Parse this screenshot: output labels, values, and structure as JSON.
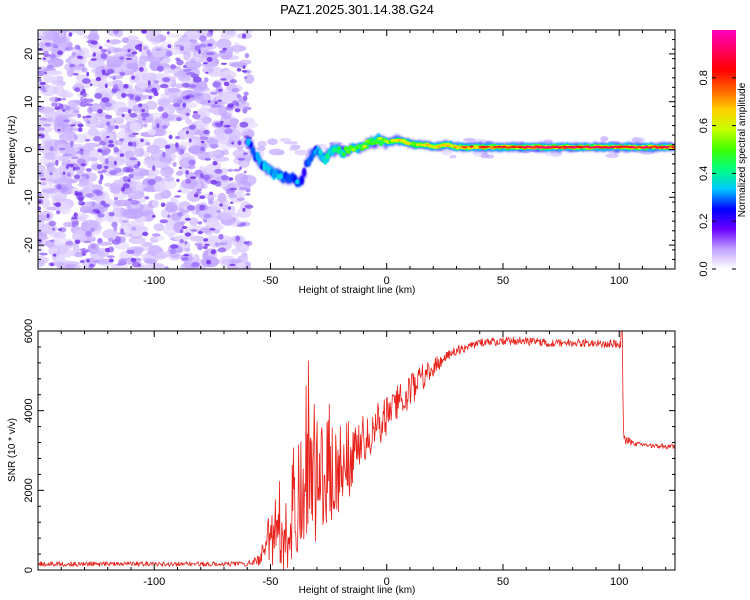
{
  "title": "PAZ1.2025.301.14.38.G24",
  "colors": {
    "snr_line": "#e8201a",
    "spec_ridge": "#ff2a2a",
    "spec_mid": "#22dd44",
    "spec_low": "#00bcd4",
    "spec_base": "#3a10ff",
    "noise": "#7a3cf0"
  },
  "chart_data": [
    {
      "type": "heatmap",
      "title": "PAZ1.2025.301.14.38.G24",
      "xlabel": "Height of straight line (km)",
      "ylabel": "Frequency (Hz)",
      "xlim": [
        -150,
        124
      ],
      "ylim": [
        -25,
        25
      ],
      "xticks": [
        -100,
        -50,
        0,
        50,
        100
      ],
      "xtick_labels": [
        "-100",
        "-50",
        "0",
        "50",
        "100"
      ],
      "yticks": [
        -20,
        -10,
        0,
        10,
        20
      ],
      "ytick_labels": [
        "-20",
        "-10",
        "0",
        "10",
        "20"
      ],
      "noise_region": {
        "x_from": -150,
        "x_to": -59,
        "description_level": 0.15
      },
      "ridge": {
        "x": [
          -60,
          -57,
          -54,
          -51,
          -48,
          -45,
          -42,
          -39,
          -37,
          -35,
          -33,
          -31,
          -29,
          -27,
          -25,
          -22,
          -19,
          -16,
          -13,
          -10,
          -7,
          -4,
          0,
          4,
          8,
          12,
          16,
          20,
          25,
          30,
          40,
          50,
          60,
          70,
          80,
          90,
          100,
          110,
          120,
          124
        ],
        "y": [
          2,
          -1,
          -3,
          -4.5,
          -5,
          -5.5,
          -6,
          -7,
          -6.5,
          -3,
          -1.5,
          0,
          -1,
          -2,
          -0.5,
          0,
          -0.5,
          0,
          0,
          1,
          1.5,
          2,
          1.5,
          2,
          1.5,
          1,
          1,
          0.5,
          1,
          0.5,
          0.5,
          0.5,
          0.5,
          0.5,
          0.5,
          0.5,
          0.5,
          0.5,
          0.5,
          0.5
        ],
        "amplitude": [
          0.3,
          0.3,
          0.3,
          0.35,
          0.35,
          0.3,
          0.3,
          0.3,
          0.25,
          0.25,
          0.3,
          0.3,
          0.35,
          0.35,
          0.4,
          0.4,
          0.45,
          0.5,
          0.5,
          0.55,
          0.5,
          0.5,
          0.55,
          0.6,
          0.6,
          0.55,
          0.6,
          0.6,
          0.65,
          0.7,
          0.75,
          0.8,
          0.85,
          0.9,
          0.9,
          0.95,
          0.9,
          0.85,
          0.85,
          0.85
        ]
      }
    },
    {
      "type": "colorbar",
      "label": "Normalized spectral amplitude",
      "range": [
        0,
        1
      ],
      "ticks": [
        0.0,
        0.2,
        0.4,
        0.6,
        0.8
      ],
      "tick_labels": [
        "0.0",
        "0.2",
        "0.4",
        "0.6",
        "0.8"
      ],
      "colormap": [
        "#ffffff",
        "#c0a0ff",
        "#6a00ff",
        "#0000ff",
        "#00c8ff",
        "#00ff80",
        "#40ff00",
        "#c8ff00",
        "#ffd000",
        "#ff6000",
        "#ff0000",
        "#ff0060",
        "#ff00c0"
      ]
    },
    {
      "type": "line",
      "xlabel": "Height of straight line (km)",
      "ylabel": "SNR (10 * v/v)",
      "xlim": [
        -150,
        124
      ],
      "ylim": [
        0,
        6000
      ],
      "xticks": [
        -100,
        -50,
        0,
        50,
        100
      ],
      "xtick_labels": [
        "-100",
        "-50",
        "0",
        "50",
        "100"
      ],
      "yticks": [
        0,
        2000,
        4000,
        6000
      ],
      "ytick_labels": [
        "0",
        "2000",
        "4000",
        "6000"
      ],
      "envelope": {
        "x": [
          -150,
          -60,
          -55,
          -50,
          -45,
          -40,
          -35,
          -30,
          -25,
          -20,
          -15,
          -10,
          -5,
          0,
          5,
          10,
          15,
          20,
          25,
          30,
          35,
          40,
          50,
          60,
          70,
          80,
          90,
          100,
          101,
          102,
          105,
          110,
          120,
          124
        ],
        "y": [
          150,
          150,
          250,
          800,
          1400,
          1700,
          2100,
          2400,
          2500,
          2700,
          3000,
          3300,
          3600,
          3900,
          4200,
          4500,
          4800,
          5100,
          5300,
          5500,
          5600,
          5700,
          5750,
          5750,
          5700,
          5700,
          5700,
          5650,
          5700,
          3300,
          3200,
          3150,
          3100,
          3100
        ],
        "noise": [
          60,
          60,
          150,
          700,
          1300,
          1500,
          1500,
          1500,
          1300,
          1100,
          900,
          700,
          600,
          500,
          450,
          400,
          350,
          250,
          150,
          120,
          100,
          100,
          100,
          100,
          100,
          100,
          100,
          120,
          300,
          150,
          80,
          60,
          60,
          60
        ]
      }
    }
  ]
}
